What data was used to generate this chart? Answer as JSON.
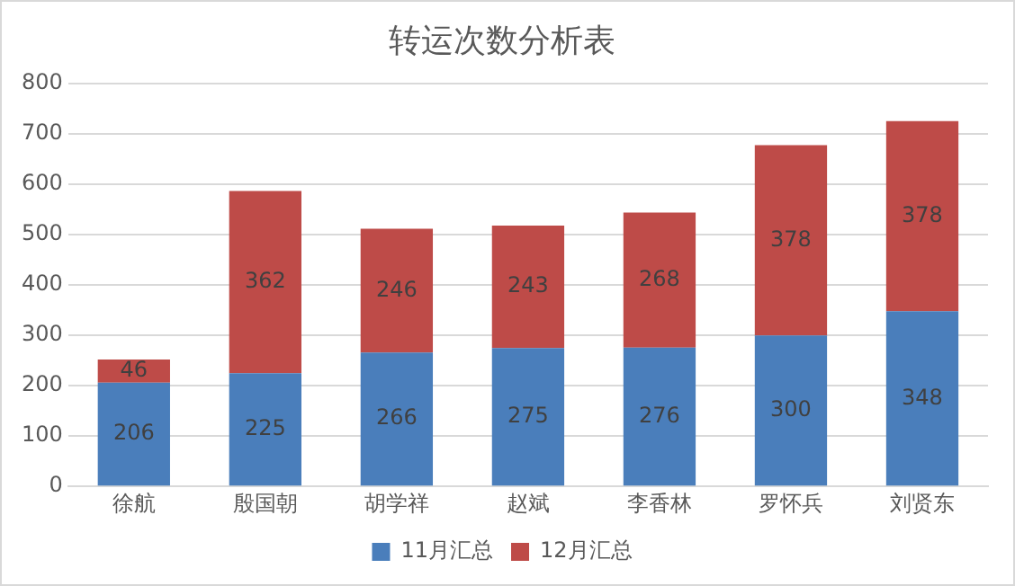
{
  "chart_data": {
    "type": "bar",
    "title": "转运次数分析表",
    "stacked": true,
    "data_labels": true,
    "grid": "y",
    "legend": "bottom",
    "categories": [
      "徐航",
      "殷国朝",
      "胡学祥",
      "赵斌",
      "李香林",
      "罗怀兵",
      "刘贤东"
    ],
    "series": [
      {
        "name": "11月汇总",
        "color": "#4a7ebb",
        "values": [
          206,
          225,
          266,
          275,
          276,
          300,
          348
        ]
      },
      {
        "name": "12月汇总",
        "color": "#be4b48",
        "values": [
          46,
          362,
          246,
          243,
          268,
          378,
          378
        ]
      }
    ],
    "ylim": [
      0,
      800
    ],
    "yticks": [
      0,
      100,
      200,
      300,
      400,
      500,
      600,
      700,
      800
    ]
  }
}
